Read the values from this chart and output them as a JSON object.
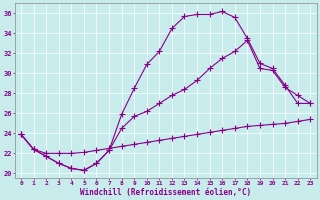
{
  "xlabel": "Windchill (Refroidissement éolien,°C)",
  "xlim": [
    -0.5,
    23.5
  ],
  "ylim": [
    19.5,
    37.0
  ],
  "xticks": [
    0,
    1,
    2,
    3,
    4,
    5,
    6,
    7,
    8,
    9,
    10,
    11,
    12,
    13,
    14,
    15,
    16,
    17,
    18,
    19,
    20,
    21,
    22,
    23
  ],
  "yticks": [
    20,
    22,
    24,
    26,
    28,
    30,
    32,
    34,
    36
  ],
  "bg_color": "#c8ecec",
  "line_color": "#880088",
  "grid_color": "#b0d0d0",
  "line1_x": [
    0,
    1,
    2,
    3,
    4,
    5,
    6,
    7,
    8,
    9,
    10,
    11,
    12,
    13,
    14,
    15,
    16,
    17,
    18,
    19,
    20,
    21,
    22,
    23
  ],
  "line1_y": [
    23.9,
    22.4,
    21.7,
    21.0,
    20.5,
    20.3,
    21.0,
    22.3,
    25.9,
    28.5,
    30.9,
    32.2,
    34.5,
    35.7,
    35.9,
    35.9,
    36.2,
    35.6,
    33.5,
    31.0,
    30.5,
    28.8,
    27.0,
    27.0
  ],
  "line2_x": [
    0,
    1,
    2,
    3,
    4,
    5,
    6,
    7,
    8,
    9,
    10,
    11,
    12,
    13,
    14,
    15,
    16,
    17,
    18,
    19,
    20,
    21,
    22,
    23
  ],
  "line2_y": [
    23.9,
    22.4,
    21.7,
    21.0,
    20.5,
    20.3,
    21.0,
    22.3,
    24.5,
    25.7,
    26.2,
    27.0,
    27.8,
    28.4,
    29.3,
    30.5,
    31.5,
    32.2,
    33.3,
    30.5,
    30.3,
    28.6,
    27.8,
    27.0
  ],
  "line3_x": [
    0,
    1,
    2,
    3,
    4,
    5,
    6,
    7,
    8,
    9,
    10,
    11,
    12,
    13,
    14,
    15,
    16,
    17,
    18,
    19,
    20,
    21,
    22,
    23
  ],
  "line3_y": [
    23.9,
    22.4,
    22.0,
    22.0,
    22.0,
    22.1,
    22.3,
    22.5,
    22.7,
    22.9,
    23.1,
    23.3,
    23.5,
    23.7,
    23.9,
    24.1,
    24.3,
    24.5,
    24.7,
    24.8,
    24.9,
    25.0,
    25.2,
    25.4
  ]
}
